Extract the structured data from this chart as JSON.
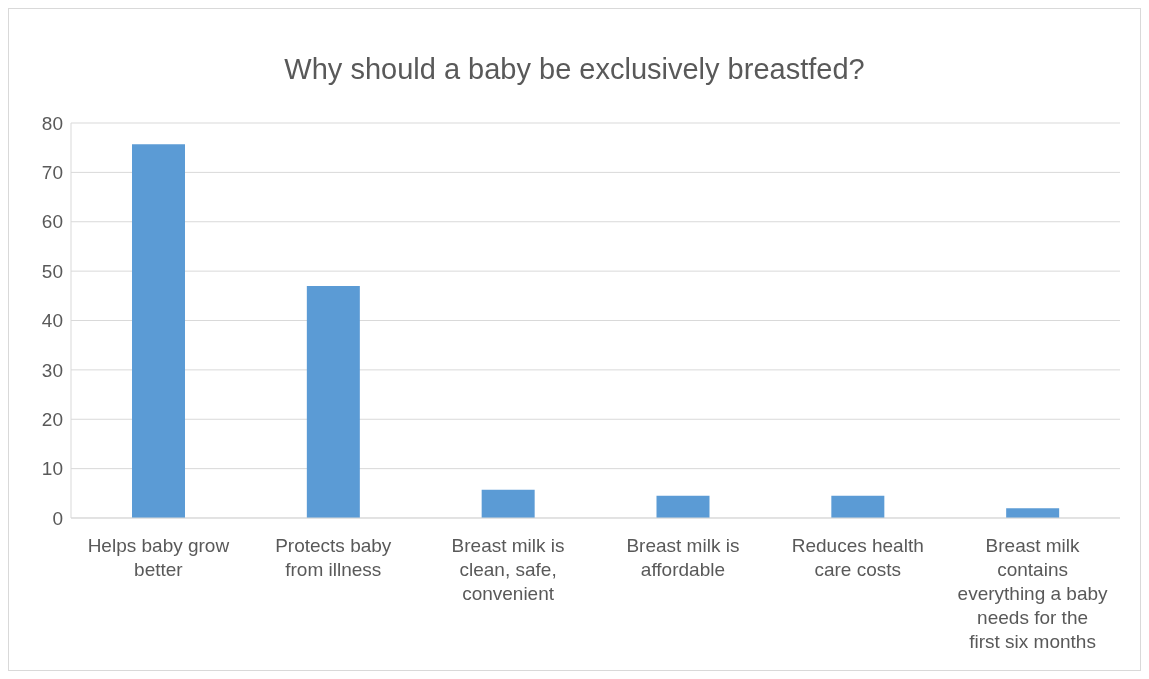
{
  "chart_data": {
    "type": "bar",
    "title": "Why should a baby be exclusively breastfed?",
    "categories": [
      "Helps baby grow better",
      "Protects baby from illness",
      "Breast milk is clean, safe, convenient",
      "Breast milk is affordable",
      "Reduces health care costs",
      "Breast milk contains everything a baby needs for the first six months"
    ],
    "values": [
      75.7,
      47,
      5.7,
      4.5,
      4.5,
      2
    ],
    "color": "#5b9bd5",
    "ylim": [
      0,
      80
    ],
    "yticks": [
      0,
      10,
      20,
      30,
      40,
      50,
      60,
      70,
      80
    ],
    "grid": "y"
  }
}
